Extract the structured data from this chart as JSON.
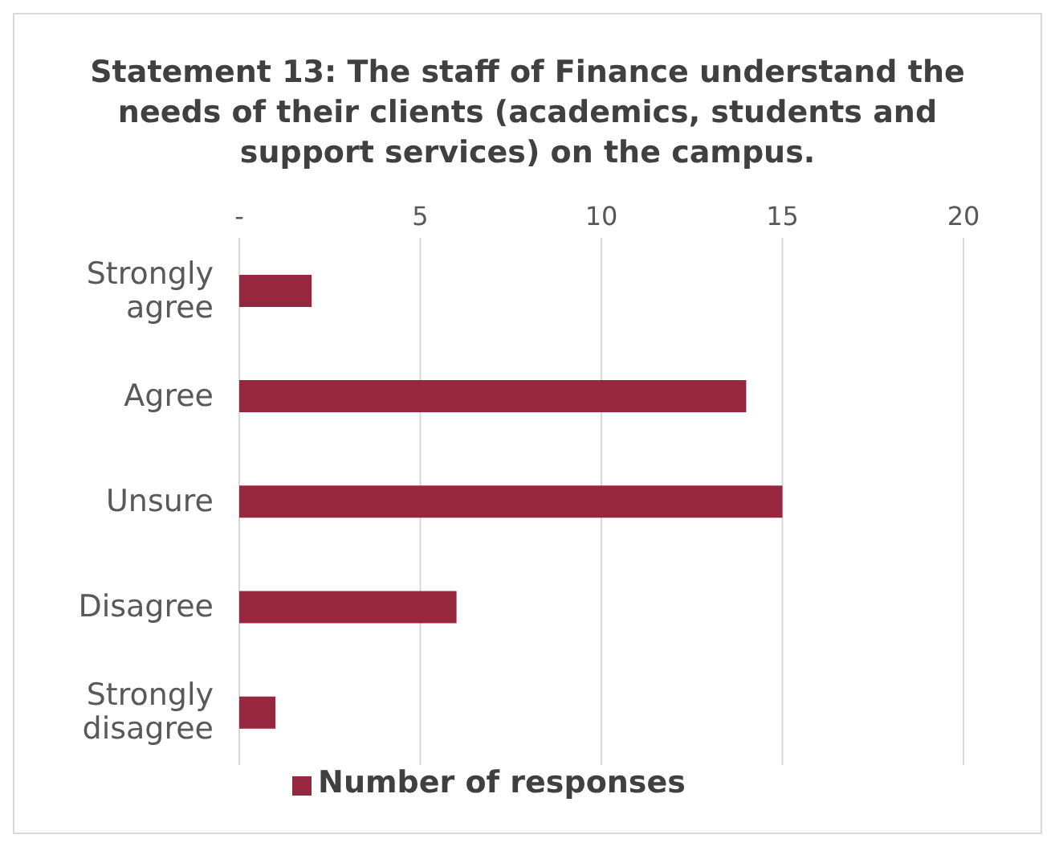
{
  "chart_data": {
    "type": "bar",
    "orientation": "horizontal",
    "title": "Statement 13: The staff of Finance understand the needs of their clients (academics, students and support services) on the campus.",
    "categories": [
      "Strongly agree",
      "Agree",
      "Unsure",
      "Disagree",
      "Strongly disagree"
    ],
    "series": [
      {
        "name": "Number of responses",
        "color": "#97263f",
        "values": [
          2,
          14,
          15,
          6,
          1
        ]
      }
    ],
    "xlim": [
      0,
      20
    ],
    "xticks": [
      {
        "value": 0,
        "label": "-"
      },
      5,
      10,
      15,
      20
    ],
    "grid": "x",
    "legend": "bottom"
  }
}
